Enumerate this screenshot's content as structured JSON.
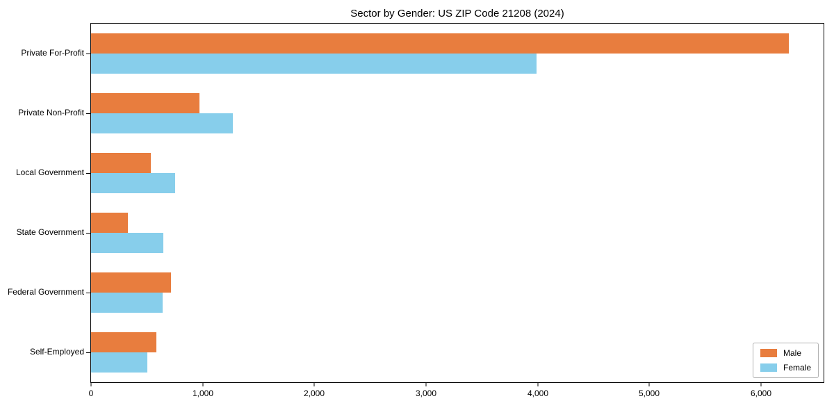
{
  "chart_data": {
    "type": "bar",
    "orientation": "horizontal",
    "title": "Sector by Gender: US ZIP Code 21208 (2024)",
    "categories": [
      "Private For-Profit",
      "Private Non-Profit",
      "Local Government",
      "State Government",
      "Federal Government",
      "Self-Employed"
    ],
    "series": [
      {
        "name": "Male",
        "color": "#e87d3e",
        "values": [
          6250,
          970,
          535,
          330,
          715,
          585
        ]
      },
      {
        "name": "Female",
        "color": "#87ceeb",
        "values": [
          3990,
          1270,
          755,
          650,
          640,
          505
        ]
      }
    ],
    "xlabel": "",
    "ylabel": "",
    "xlim": [
      0,
      6560
    ],
    "xticks": [
      0,
      1000,
      2000,
      3000,
      4000,
      5000,
      6000
    ],
    "xtick_labels": [
      "0",
      "1,000",
      "2,000",
      "3,000",
      "4,000",
      "5,000",
      "6,000"
    ],
    "legend_position": "lower right",
    "grid": false,
    "axis_color": "#000000"
  }
}
